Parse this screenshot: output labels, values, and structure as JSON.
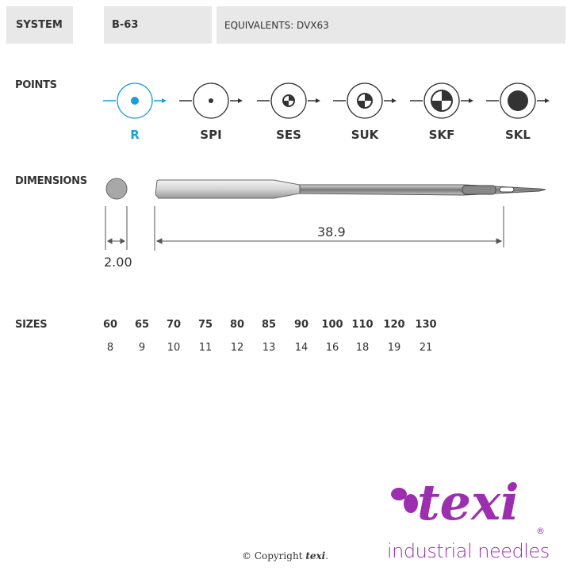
{
  "header": {
    "system_label": "SYSTEM",
    "system_value": "B-63",
    "equivalents": "EQUIVALENTS: DVX63"
  },
  "points": {
    "label": "POINTS",
    "items": [
      {
        "code": "R",
        "selected": true
      },
      {
        "code": "SPI"
      },
      {
        "code": "SES"
      },
      {
        "code": "SUK"
      },
      {
        "code": "SKF"
      },
      {
        "code": "SKL"
      }
    ],
    "accent": "#1a9ee0"
  },
  "dimensions": {
    "label": "DIMENSIONS",
    "diameter": "2.00",
    "length": "38.9"
  },
  "sizes": {
    "label": "SIZES",
    "metric": [
      "60",
      "65",
      "70",
      "75",
      "80",
      "85",
      "90",
      "100",
      "110",
      "120",
      "130"
    ],
    "singer": [
      "8",
      "9",
      "10",
      "11",
      "12",
      "13",
      "14",
      "16",
      "18",
      "19",
      "21"
    ]
  },
  "footer": {
    "copyright": "© Copyright",
    "copyright_brand": "texi",
    "brand": "texi",
    "tagline": "industrial needles",
    "brand_color": "#9b2fae"
  }
}
